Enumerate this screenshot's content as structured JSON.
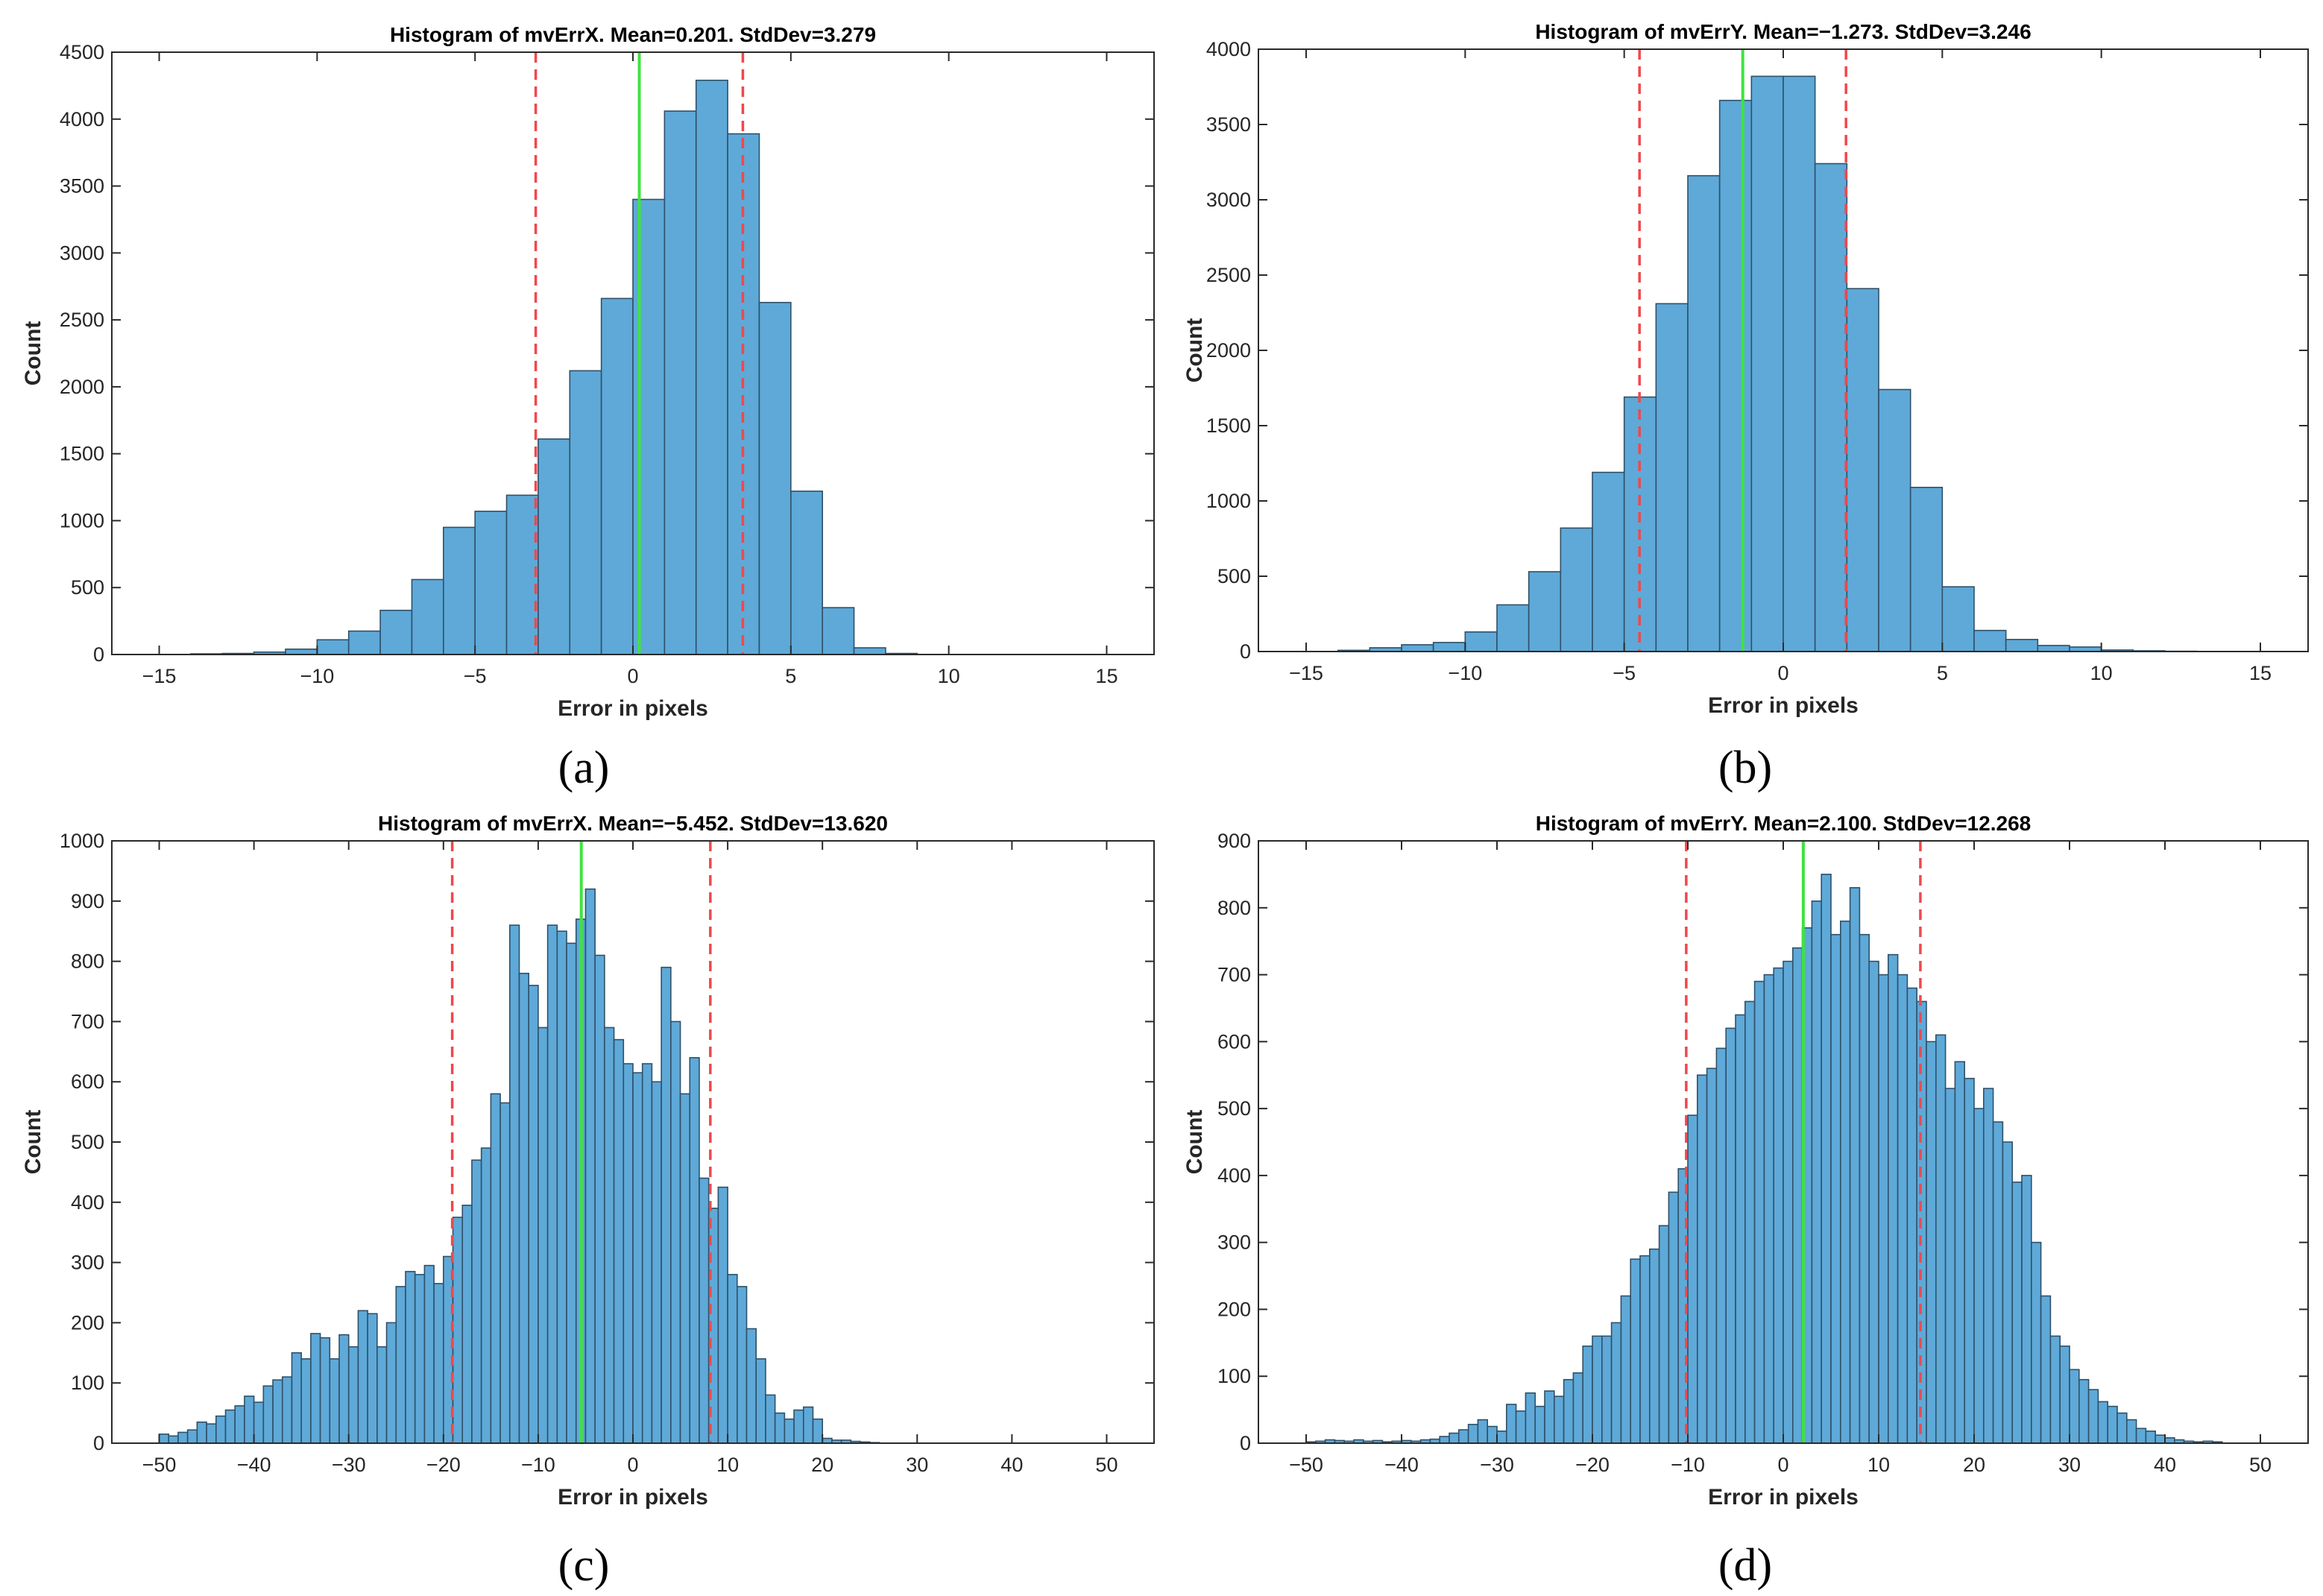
{
  "figure": {
    "captions": [
      "(a)",
      "(b)",
      "(c)",
      "(d)"
    ]
  },
  "chart_data": [
    {
      "type": "bar",
      "panel": "a",
      "title": "Histogram of mvErrX.  Mean=0.201. StdDev=3.279",
      "xlabel": "Error in pixels",
      "ylabel": "Count",
      "xlim": [
        -16.5,
        16.5
      ],
      "ylim": [
        0,
        4500
      ],
      "xticks": [
        -15,
        -10,
        -5,
        0,
        5,
        10,
        15
      ],
      "xtick_labels": [
        "−15",
        "−10",
        "−5",
        "0",
        "5",
        "10",
        "15"
      ],
      "yticks": [
        0,
        500,
        1000,
        1500,
        2000,
        2500,
        3000,
        3500,
        4000,
        4500
      ],
      "ytick_labels": [
        "0",
        "500",
        "1000",
        "1500",
        "2000",
        "2500",
        "3000",
        "3500",
        "4000",
        "4500"
      ],
      "bin_start": -14,
      "bin_width": 1,
      "values": [
        5,
        8,
        18,
        40,
        110,
        175,
        330,
        560,
        950,
        1070,
        1190,
        1610,
        2120,
        2660,
        3400,
        4060,
        4290,
        3890,
        2630,
        1220,
        350,
        50,
        8
      ],
      "mean": 0.201,
      "sd_lines": [
        -3.078,
        3.48
      ]
    },
    {
      "type": "bar",
      "panel": "b",
      "title": "Histogram of mvErrY.  Mean=−1.273. StdDev=3.246",
      "xlabel": "Error in pixels",
      "ylabel": "Count",
      "xlim": [
        -16.5,
        16.5
      ],
      "ylim": [
        0,
        4000
      ],
      "xticks": [
        -15,
        -10,
        -5,
        0,
        5,
        10,
        15
      ],
      "xtick_labels": [
        "−15",
        "−10",
        "−5",
        "0",
        "5",
        "10",
        "15"
      ],
      "yticks": [
        0,
        500,
        1000,
        1500,
        2000,
        2500,
        3000,
        3500,
        4000
      ],
      "ytick_labels": [
        "0",
        "500",
        "1000",
        "1500",
        "2000",
        "2500",
        "3000",
        "3500",
        "4000"
      ],
      "bin_start": -14,
      "bin_width": 1,
      "values": [
        8,
        25,
        45,
        60,
        130,
        310,
        530,
        820,
        1190,
        1690,
        2310,
        3160,
        3660,
        3820,
        3820,
        3240,
        2410,
        1740,
        1090,
        430,
        140,
        80,
        40,
        30,
        10,
        5,
        2
      ],
      "mean": -1.273,
      "sd_lines": [
        -4.519,
        1.973
      ]
    },
    {
      "type": "bar",
      "panel": "c",
      "title": "Histogram of mvErrX.  Mean=−5.452. StdDev=13.620",
      "xlabel": "Error in pixels",
      "ylabel": "Count",
      "xlim": [
        -55,
        55
      ],
      "ylim": [
        0,
        1000
      ],
      "xticks": [
        -50,
        -40,
        -30,
        -20,
        -10,
        0,
        10,
        20,
        30,
        40,
        50
      ],
      "xtick_labels": [
        "−50",
        "−40",
        "−30",
        "−20",
        "−10",
        "0",
        "10",
        "20",
        "30",
        "40",
        "50"
      ],
      "yticks": [
        0,
        100,
        200,
        300,
        400,
        500,
        600,
        700,
        800,
        900,
        1000
      ],
      "ytick_labels": [
        "0",
        "100",
        "200",
        "300",
        "400",
        "500",
        "600",
        "700",
        "800",
        "900",
        "1000"
      ],
      "bin_start": -50,
      "bin_width": 1,
      "values": [
        15,
        12,
        18,
        22,
        35,
        32,
        45,
        55,
        62,
        78,
        68,
        95,
        105,
        110,
        150,
        140,
        182,
        175,
        140,
        180,
        160,
        220,
        215,
        160,
        200,
        260,
        285,
        280,
        295,
        265,
        310,
        375,
        395,
        470,
        490,
        580,
        565,
        860,
        780,
        760,
        690,
        860,
        850,
        830,
        870,
        920,
        810,
        690,
        670,
        630,
        615,
        630,
        600,
        790,
        700,
        580,
        640,
        440,
        390,
        425,
        280,
        260,
        190,
        140,
        80,
        50,
        40,
        55,
        60,
        40,
        8,
        5,
        5,
        3,
        2,
        1
      ],
      "mean": -5.452,
      "sd_lines": [
        -19.072,
        8.168
      ]
    },
    {
      "type": "bar",
      "panel": "d",
      "title": "Histogram of mvErrY.  Mean=2.100. StdDev=12.268",
      "xlabel": "Error in pixels",
      "ylabel": "Count",
      "xlim": [
        -55,
        55
      ],
      "ylim": [
        0,
        900
      ],
      "xticks": [
        -50,
        -40,
        -30,
        -20,
        -10,
        0,
        10,
        20,
        30,
        40,
        50
      ],
      "xtick_labels": [
        "−50",
        "−40",
        "−30",
        "−20",
        "−10",
        "0",
        "10",
        "20",
        "30",
        "40",
        "50"
      ],
      "yticks": [
        0,
        100,
        200,
        300,
        400,
        500,
        600,
        700,
        800,
        900
      ],
      "ytick_labels": [
        "0",
        "100",
        "200",
        "300",
        "400",
        "500",
        "600",
        "700",
        "800",
        "900"
      ],
      "bin_start": -50,
      "bin_width": 1,
      "values": [
        2,
        3,
        5,
        4,
        3,
        5,
        3,
        4,
        2,
        3,
        4,
        3,
        5,
        6,
        10,
        15,
        20,
        28,
        35,
        25,
        18,
        58,
        48,
        75,
        55,
        78,
        70,
        95,
        105,
        145,
        160,
        160,
        180,
        220,
        275,
        280,
        290,
        325,
        375,
        410,
        490,
        550,
        560,
        590,
        620,
        640,
        660,
        690,
        700,
        710,
        720,
        740,
        770,
        810,
        850,
        760,
        780,
        830,
        760,
        720,
        700,
        730,
        700,
        680,
        660,
        600,
        610,
        530,
        570,
        545,
        500,
        530,
        480,
        450,
        390,
        400,
        300,
        220,
        160,
        145,
        110,
        95,
        80,
        62,
        55,
        45,
        35,
        22,
        18,
        12,
        8,
        5,
        3,
        2,
        3,
        2
      ],
      "mean": 2.1,
      "sd_lines": [
        -10.168,
        14.368
      ]
    }
  ]
}
